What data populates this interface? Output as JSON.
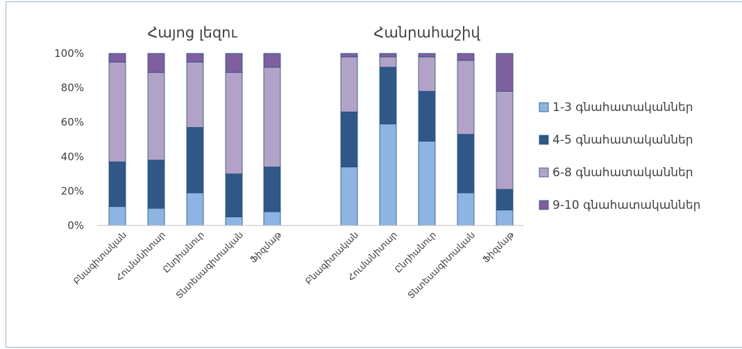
{
  "chart_data": {
    "type": "bar",
    "stacked": true,
    "percent": true,
    "groups": [
      {
        "title": "Հայոց լեզու",
        "categories": [
          "Բնագիտական",
          "Հումանիտար",
          "Ընդհանուր",
          "Տնտեսագիտական",
          "Ֆիզմաթ"
        ]
      },
      {
        "title": "Հանրահաշիվ",
        "categories": [
          "Բնագիտական",
          "Հումանիտար",
          "Ընդհանուր",
          "Տնտեսագիտական",
          "Ֆիզմաթ"
        ]
      }
    ],
    "series": [
      {
        "name": "1-3 գնահատականներ",
        "color": "#8eb4e3",
        "values": [
          11,
          10,
          19,
          5,
          8,
          34,
          59,
          49,
          19,
          9
        ]
      },
      {
        "name": "4-5 գնահատականներ",
        "color": "#2f5888",
        "values": [
          26,
          28,
          38,
          25,
          26,
          32,
          33,
          29,
          34,
          12
        ]
      },
      {
        "name": "6-8 գնահատականներ",
        "color": "#b3a2c7",
        "values": [
          58,
          51,
          38,
          59,
          58,
          32,
          6,
          20,
          43,
          57
        ]
      },
      {
        "name": "9-10 գնահատականներ",
        "color": "#7f5fa0",
        "values": [
          5,
          11,
          5,
          11,
          8,
          2,
          2,
          2,
          4,
          22
        ]
      }
    ],
    "ylim": [
      0,
      100
    ],
    "yticks": [
      "0%",
      "20%",
      "40%",
      "60%",
      "80%",
      "100%"
    ],
    "legend_position": "right",
    "grid": false
  }
}
